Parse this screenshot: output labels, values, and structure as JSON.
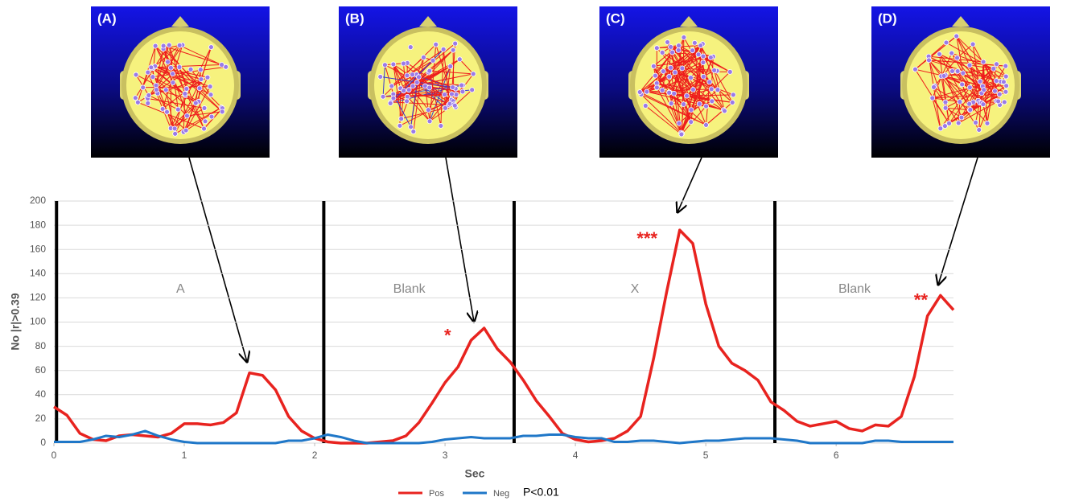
{
  "chart_data": {
    "type": "line",
    "y_label": "No |r|>0.39",
    "x_label": "Sec",
    "x": [
      0,
      0.1,
      0.2,
      0.3,
      0.4,
      0.5,
      0.6,
      0.7,
      0.8,
      0.9,
      1,
      1.1,
      1.2,
      1.3,
      1.4,
      1.5,
      1.6,
      1.7,
      1.8,
      1.9,
      2,
      2.1,
      2.2,
      2.3,
      2.4,
      2.5,
      2.6,
      2.7,
      2.8,
      2.9,
      3,
      3.1,
      3.2,
      3.3,
      3.4,
      3.5,
      3.6,
      3.7,
      3.8,
      3.9,
      4,
      4.1,
      4.2,
      4.3,
      4.4,
      4.5,
      4.6,
      4.7,
      4.8,
      4.9,
      5,
      5.1,
      5.2,
      5.3,
      5.4,
      5.5,
      5.6,
      5.7,
      5.8,
      5.9,
      6,
      6.1,
      6.2,
      6.3,
      6.4,
      6.5,
      6.6,
      6.7,
      6.8,
      6.9
    ],
    "series": [
      {
        "name": "Pos",
        "color": "#e8231f",
        "values": [
          30,
          23,
          8,
          3,
          2,
          6,
          7,
          6,
          5,
          8,
          16,
          16,
          15,
          17,
          25,
          58,
          56,
          44,
          22,
          10,
          4,
          1,
          0,
          0,
          0,
          1,
          2,
          6,
          17,
          33,
          50,
          63,
          85,
          95,
          78,
          67,
          52,
          35,
          22,
          8,
          3,
          1,
          2,
          4,
          10,
          22,
          70,
          125,
          176,
          165,
          115,
          80,
          66,
          60,
          52,
          34,
          27,
          18,
          14,
          16,
          18,
          12,
          10,
          15,
          14,
          22,
          55,
          105,
          122,
          110
        ]
      },
      {
        "name": "Neg",
        "color": "#1f77c8",
        "values": [
          1,
          1,
          1,
          3,
          6,
          5,
          7,
          10,
          6,
          3,
          1,
          0,
          0,
          0,
          0,
          0,
          0,
          0,
          2,
          2,
          4,
          7,
          5,
          2,
          0,
          0,
          0,
          0,
          0,
          1,
          3,
          4,
          5,
          4,
          4,
          4,
          6,
          6,
          7,
          7,
          5,
          4,
          4,
          1,
          1,
          2,
          2,
          1,
          0,
          1,
          2,
          2,
          3,
          4,
          4,
          4,
          3,
          2,
          0,
          0,
          0,
          0,
          0,
          2,
          2,
          1,
          1,
          1,
          1,
          1
        ]
      }
    ],
    "xlim": [
      0,
      6.9
    ],
    "xticks": [
      0,
      1,
      2,
      3,
      4,
      5,
      6
    ],
    "ylim": [
      0,
      200
    ],
    "yticks": [
      0,
      20,
      40,
      60,
      80,
      100,
      120,
      140,
      160,
      180,
      200
    ],
    "grid": true,
    "dividers": [
      0.02,
      2.07,
      3.53,
      5.53
    ],
    "phases": [
      "A",
      "Blank",
      "X",
      "Blank"
    ],
    "annotations": [
      {
        "text": "*",
        "x": 3.02,
        "y": 88
      },
      {
        "text": "***",
        "x": 4.55,
        "y": 168
      },
      {
        "text": "**",
        "x": 6.65,
        "y": 117
      }
    ],
    "legend_note": "P<0.01",
    "panels": [
      "(A)",
      "(B)",
      "(C)",
      "(D)"
    ]
  }
}
